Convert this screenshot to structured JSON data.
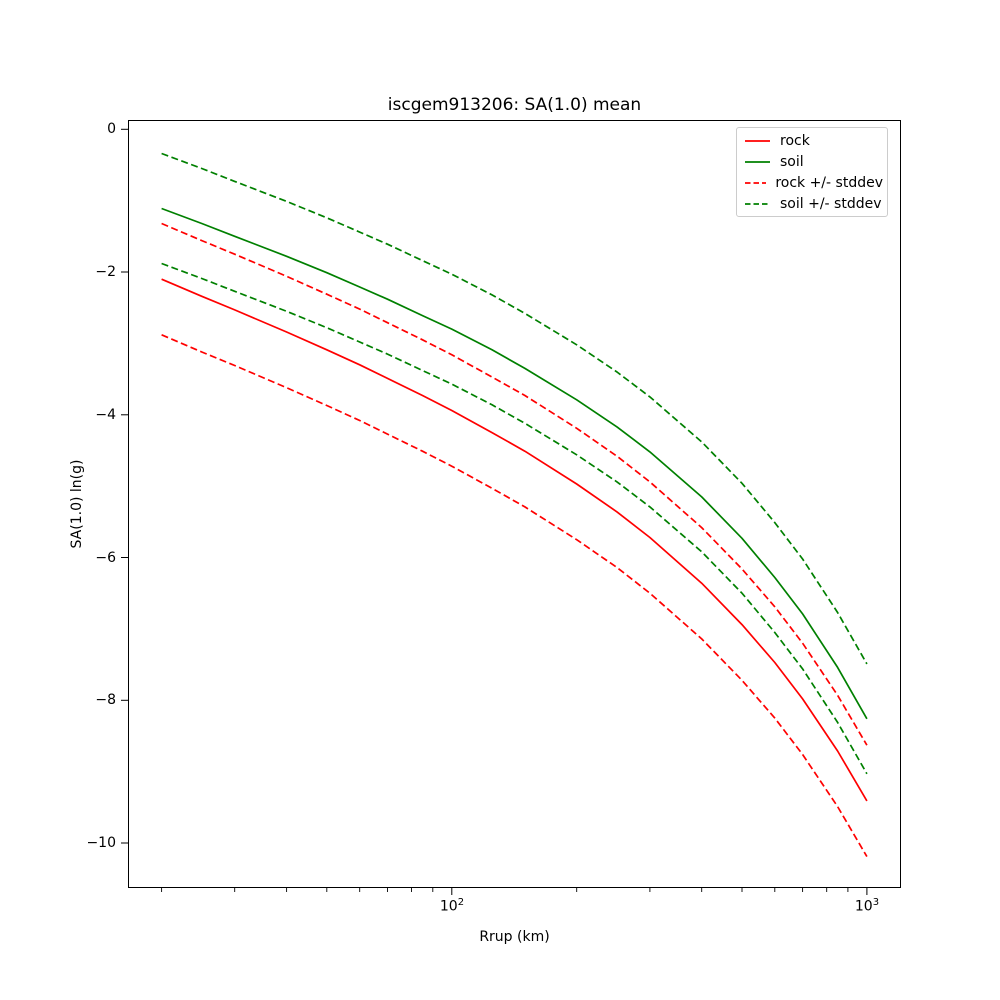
{
  "figure": {
    "title": "iscgem913206: SA(1.0) mean",
    "xlabel": "Rrup (km)",
    "ylabel": "SA(1.0) ln(g)",
    "background_color": "#ffffff",
    "frame_color": "#000000"
  },
  "legend": {
    "position": "upper-right",
    "entries": [
      {
        "label": "rock",
        "color": "#ff0000",
        "dash": false
      },
      {
        "label": "soil",
        "color": "#008000",
        "dash": false
      },
      {
        "label": "rock +/- stddev",
        "color": "#ff0000",
        "dash": true
      },
      {
        "label": "soil +/- stddev",
        "color": "#008000",
        "dash": true
      }
    ]
  },
  "chart_data": {
    "type": "line",
    "title": "iscgem913206: SA(1.0) mean",
    "xlabel": "Rrup (km)",
    "ylabel": "SA(1.0) ln(g)",
    "xscale": "log",
    "yscale": "linear",
    "grid": false,
    "xlim": [
      16.6,
      1208
    ],
    "ylim": [
      -10.63,
      0.13
    ],
    "x": [
      20,
      25,
      30,
      40,
      50,
      60,
      70,
      85,
      100,
      125,
      150,
      200,
      250,
      300,
      400,
      500,
      600,
      700,
      850,
      1000
    ],
    "series": [
      {
        "name": "rock",
        "color": "#ff0000",
        "style": "solid",
        "values": [
          -2.1,
          -2.34,
          -2.53,
          -2.84,
          -3.09,
          -3.3,
          -3.49,
          -3.73,
          -3.94,
          -4.25,
          -4.51,
          -4.97,
          -5.36,
          -5.72,
          -6.36,
          -6.94,
          -7.47,
          -7.98,
          -8.71,
          -9.41
        ]
      },
      {
        "name": "soil",
        "color": "#008000",
        "style": "solid",
        "values": [
          -1.11,
          -1.32,
          -1.5,
          -1.78,
          -2.01,
          -2.21,
          -2.38,
          -2.61,
          -2.8,
          -3.09,
          -3.35,
          -3.79,
          -4.17,
          -4.52,
          -5.15,
          -5.73,
          -6.28,
          -6.79,
          -7.54,
          -8.26
        ]
      },
      {
        "name": "rock plus stddev",
        "color": "#ff0000",
        "style": "dashed",
        "values": [
          -1.32,
          -1.56,
          -1.75,
          -2.06,
          -2.31,
          -2.52,
          -2.71,
          -2.95,
          -3.16,
          -3.47,
          -3.73,
          -4.19,
          -4.58,
          -4.94,
          -5.58,
          -6.16,
          -6.69,
          -7.2,
          -7.93,
          -8.63
        ]
      },
      {
        "name": "rock minus stddev",
        "color": "#ff0000",
        "style": "dashed",
        "values": [
          -2.88,
          -3.12,
          -3.31,
          -3.62,
          -3.87,
          -4.08,
          -4.27,
          -4.51,
          -4.72,
          -5.03,
          -5.29,
          -5.75,
          -6.14,
          -6.5,
          -7.14,
          -7.72,
          -8.25,
          -8.76,
          -9.49,
          -10.19
        ]
      },
      {
        "name": "soil plus stddev",
        "color": "#008000",
        "style": "dashed",
        "values": [
          -0.34,
          -0.55,
          -0.73,
          -1.01,
          -1.24,
          -1.44,
          -1.61,
          -1.84,
          -2.03,
          -2.32,
          -2.58,
          -3.02,
          -3.4,
          -3.75,
          -4.38,
          -4.96,
          -5.51,
          -6.02,
          -6.77,
          -7.49
        ]
      },
      {
        "name": "soil minus stddev",
        "color": "#008000",
        "style": "dashed",
        "values": [
          -1.88,
          -2.09,
          -2.27,
          -2.55,
          -2.78,
          -2.98,
          -3.15,
          -3.38,
          -3.57,
          -3.86,
          -4.12,
          -4.56,
          -4.94,
          -5.29,
          -5.92,
          -6.5,
          -7.05,
          -7.56,
          -8.31,
          -9.03
        ]
      }
    ],
    "xticks_major": [
      {
        "value": 100,
        "label_base": "10",
        "label_exponent": "2"
      },
      {
        "value": 1000,
        "label_base": "10",
        "label_exponent": "3"
      }
    ],
    "xticks_minor": [
      20,
      30,
      40,
      50,
      60,
      70,
      80,
      90,
      200,
      300,
      400,
      500,
      600,
      700,
      800,
      900
    ],
    "yticks": [
      {
        "value": 0,
        "label": "0"
      },
      {
        "value": -2,
        "label": "−2"
      },
      {
        "value": -4,
        "label": "−4"
      },
      {
        "value": -6,
        "label": "−6"
      },
      {
        "value": -8,
        "label": "−8"
      },
      {
        "value": -10,
        "label": "−10"
      }
    ]
  }
}
